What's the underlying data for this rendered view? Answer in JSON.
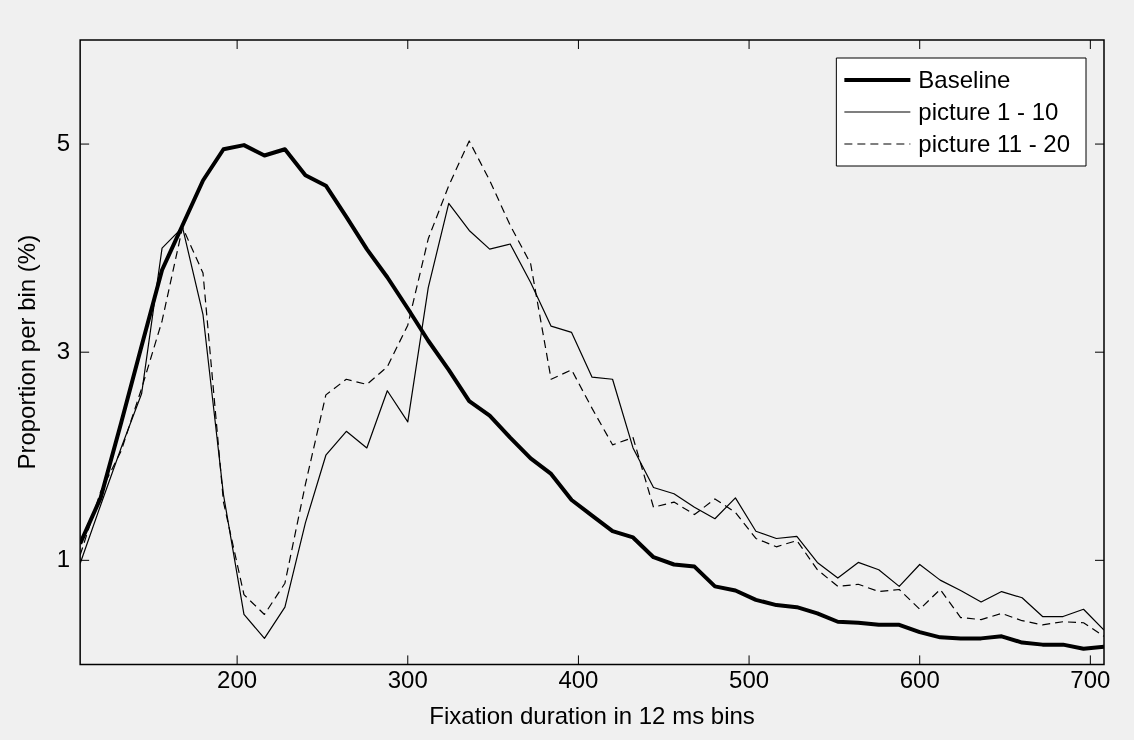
{
  "chart_data": {
    "type": "line",
    "xlabel": "Fixation duration in 12 ms bins",
    "ylabel": "Proportion per bin (%)",
    "x": [
      108,
      120,
      132,
      144,
      156,
      168,
      180,
      192,
      204,
      216,
      228,
      240,
      252,
      264,
      276,
      288,
      300,
      312,
      324,
      336,
      348,
      360,
      372,
      384,
      396,
      408,
      420,
      432,
      444,
      456,
      468,
      480,
      492,
      504,
      516,
      528,
      540,
      552,
      564,
      576,
      588,
      600,
      612,
      624,
      636,
      648,
      660,
      672,
      684,
      696,
      708
    ],
    "series": [
      {
        "name": "Baseline",
        "color": "#000000",
        "line_style": "solid",
        "values": [
          1.16,
          1.6,
          2.32,
          3.06,
          3.79,
          4.22,
          4.65,
          4.95,
          4.99,
          4.89,
          4.95,
          4.7,
          4.6,
          4.3,
          3.99,
          3.72,
          3.42,
          3.11,
          2.83,
          2.53,
          2.39,
          2.18,
          1.98,
          1.83,
          1.58,
          1.43,
          1.28,
          1.22,
          1.03,
          0.96,
          0.94,
          0.75,
          0.71,
          0.62,
          0.57,
          0.55,
          0.49,
          0.41,
          0.4,
          0.38,
          0.38,
          0.31,
          0.26,
          0.25,
          0.25,
          0.27,
          0.21,
          0.19,
          0.19,
          0.15,
          0.17
        ]
      },
      {
        "name": "picture 1 - 10",
        "color": "#000000",
        "line_style": "solid",
        "values": [
          0.97,
          1.53,
          2.08,
          2.6,
          4.0,
          4.2,
          3.36,
          1.63,
          0.48,
          0.25,
          0.55,
          1.36,
          2.01,
          2.24,
          2.08,
          2.63,
          2.33,
          3.62,
          4.43,
          4.17,
          3.99,
          4.04,
          3.67,
          3.25,
          3.19,
          2.76,
          2.74,
          2.08,
          1.7,
          1.64,
          1.51,
          1.4,
          1.6,
          1.28,
          1.21,
          1.23,
          0.98,
          0.83,
          0.98,
          0.91,
          0.75,
          0.96,
          0.81,
          0.71,
          0.6,
          0.7,
          0.64,
          0.46,
          0.46,
          0.53,
          0.33
        ]
      },
      {
        "name": "picture 11 - 20",
        "color": "#000000",
        "line_style": "dashed",
        "values": [
          1.05,
          1.66,
          2.05,
          2.65,
          3.3,
          4.2,
          3.76,
          1.56,
          0.67,
          0.48,
          0.78,
          1.73,
          2.59,
          2.74,
          2.69,
          2.86,
          3.26,
          4.09,
          4.6,
          5.03,
          4.65,
          4.22,
          3.85,
          2.74,
          2.83,
          2.46,
          2.11,
          2.18,
          1.51,
          1.56,
          1.44,
          1.59,
          1.46,
          1.21,
          1.13,
          1.19,
          0.91,
          0.75,
          0.77,
          0.7,
          0.72,
          0.53,
          0.72,
          0.45,
          0.43,
          0.49,
          0.42,
          0.38,
          0.41,
          0.4,
          0.27
        ]
      }
    ],
    "xlim": [
      108,
      708
    ],
    "xticks": [
      200,
      300,
      400,
      500,
      600,
      700
    ],
    "ylim": [
      0,
      6
    ],
    "yticks": [
      1,
      3,
      5
    ],
    "grid": false,
    "legend": "top right",
    "marker": "none"
  }
}
